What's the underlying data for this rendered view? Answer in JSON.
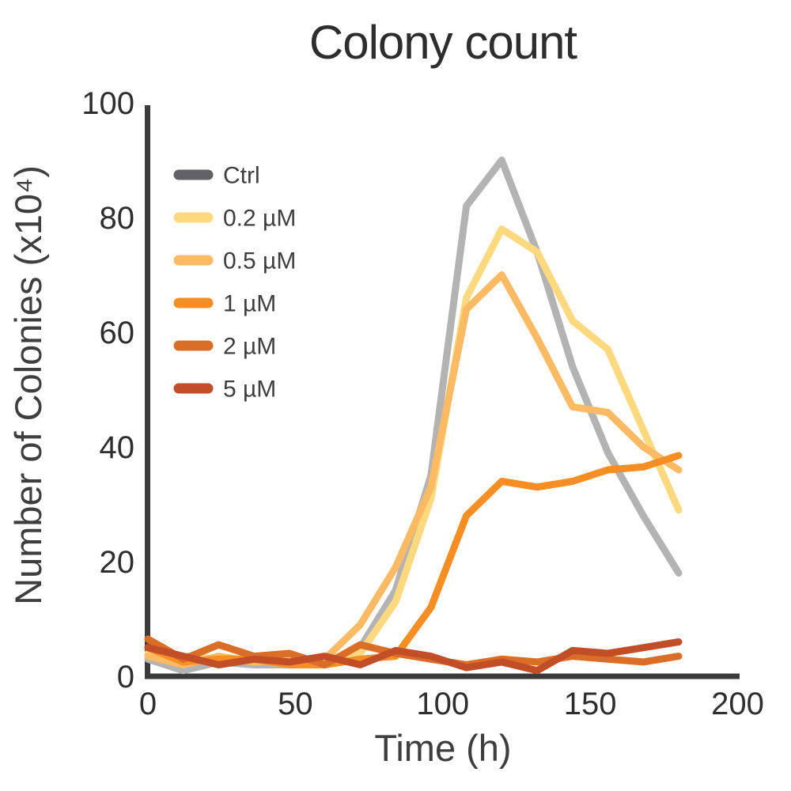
{
  "chart_data": {
    "type": "line",
    "title": "Colony count",
    "xlabel": "Time (h)",
    "ylabel": "Number of Colonies (x10⁴)",
    "xlim": [
      0,
      200
    ],
    "ylim": [
      0,
      100
    ],
    "x_ticks": [
      "0",
      "50",
      "100",
      "150",
      "200"
    ],
    "x_tick_values": [
      0,
      50,
      100,
      150,
      200
    ],
    "y_ticks": [
      "0",
      "20",
      "40",
      "60",
      "80",
      "100"
    ],
    "y_tick_values": [
      0,
      20,
      40,
      60,
      80,
      100
    ],
    "grid": false,
    "legend_position": "upper left",
    "axis_color": "#3a3a3a",
    "x": [
      0,
      12,
      24,
      36,
      48,
      60,
      72,
      84,
      96,
      108,
      120,
      132,
      144,
      156,
      168,
      180
    ],
    "series": [
      {
        "name": "Ctrl",
        "color": "#b3b3b3",
        "legend_color": "#606266",
        "values": [
          3,
          1,
          2.5,
          2,
          2,
          2,
          5,
          15,
          35,
          82,
          90,
          74,
          54,
          39,
          28,
          18
        ]
      },
      {
        "name": "0.2 µM",
        "color": "#fcd97e",
        "legend_color": "#fcd97e",
        "values": [
          4,
          3.5,
          3,
          3,
          2,
          3,
          4,
          13,
          31,
          66,
          78,
          74,
          62,
          57,
          43,
          29
        ]
      },
      {
        "name": "0.5 µM",
        "color": "#fbba63",
        "legend_color": "#fbba63",
        "values": [
          3.5,
          2,
          3.5,
          2.5,
          3,
          3,
          9,
          19,
          33,
          64,
          70,
          59,
          47,
          46,
          40,
          36
        ]
      },
      {
        "name": "1 µM",
        "color": "#f68e24",
        "legend_color": "#f68e24",
        "values": [
          5,
          2.5,
          3,
          3,
          2,
          2,
          3,
          3.5,
          12,
          28,
          34,
          33,
          34,
          36,
          36.5,
          38.5
        ]
      },
      {
        "name": "2 µM",
        "color": "#da6e26",
        "legend_color": "#da6e26",
        "values": [
          6.5,
          3,
          5.5,
          3.5,
          4,
          2,
          5.5,
          4,
          3,
          2,
          3,
          2.5,
          3.5,
          3,
          2.5,
          3.5
        ]
      },
      {
        "name": "5 µM",
        "color": "#c24e27",
        "legend_color": "#c24e27",
        "values": [
          5,
          3.5,
          2,
          3,
          2.5,
          3.5,
          2,
          4.5,
          3.5,
          1.5,
          2.5,
          1,
          4.5,
          4,
          5,
          6
        ]
      }
    ]
  }
}
